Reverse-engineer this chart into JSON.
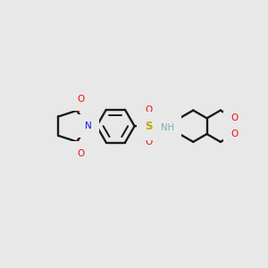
{
  "bg_color": "#e8e8e8",
  "bond_color": "#1a1a1a",
  "N_color": "#1010ee",
  "O_color": "#ee1010",
  "S_color": "#bbaa00",
  "NH_color": "#7aafaf",
  "lw": 1.7,
  "fig_w": 3.0,
  "fig_h": 3.0,
  "dpi": 100,
  "xlim": [
    0,
    10
  ],
  "ylim": [
    0,
    10
  ]
}
